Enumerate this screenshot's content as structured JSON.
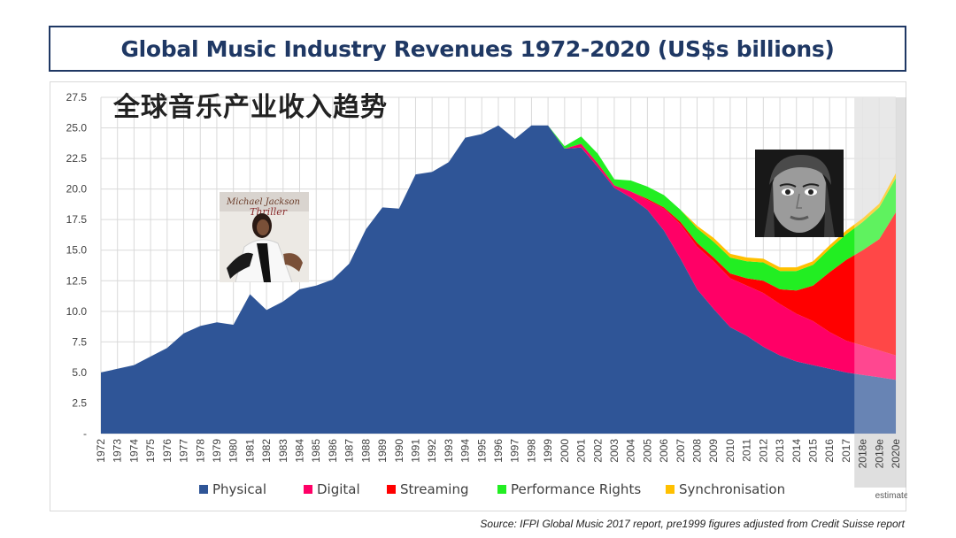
{
  "header": {
    "title": "Global Music Industry Revenues 1972-2020 (US$s billions)",
    "subtitle_cn": "全球音乐产业收入趋势"
  },
  "source_note": "Source: IFPI Global Music 2017 report, pre1999 figures adjusted from Credit Suisse report",
  "estimates_label": "estimates",
  "colors": {
    "physical": "#2f5597",
    "digital": "#ff0066",
    "streaming": "#ff0000",
    "performance": "#22ee22",
    "sync": "#ffc000",
    "grid": "#d9d9d9",
    "estimate_shade": "#bfbfbf"
  },
  "images": {
    "album_left": "Michael Jackson Thriller album cover",
    "album_right": "Adele 25 album cover"
  },
  "chart_data": {
    "type": "area",
    "stacked": true,
    "x": [
      "1972",
      "1973",
      "1974",
      "1975",
      "1976",
      "1977",
      "1978",
      "1979",
      "1980",
      "1981",
      "1982",
      "1983",
      "1984",
      "1985",
      "1986",
      "1987",
      "1988",
      "1989",
      "1990",
      "1991",
      "1992",
      "1993",
      "1994",
      "1995",
      "1996",
      "1997",
      "1998",
      "1999",
      "2000",
      "2001",
      "2002",
      "2003",
      "2004",
      "2005",
      "2006",
      "2007",
      "2008",
      "2009",
      "2010",
      "2011",
      "2012",
      "2013",
      "2014",
      "2015",
      "2016",
      "2017",
      "2018e",
      "2019e",
      "2020e"
    ],
    "estimate_start": "2018e",
    "y_ticks": [
      "-",
      "2.5",
      "5.0",
      "7.5",
      "10.0",
      "12.5",
      "15.0",
      "17.5",
      "20.0",
      "22.5",
      "25.0",
      "27.5"
    ],
    "ylim": [
      0,
      27.5
    ],
    "legend_position": "bottom",
    "grid": true,
    "series": [
      {
        "name": "Physical",
        "color_key": "physical",
        "values": [
          5.0,
          5.3,
          5.6,
          6.3,
          7.0,
          8.2,
          8.8,
          9.1,
          8.9,
          11.4,
          10.1,
          10.8,
          11.8,
          12.1,
          12.6,
          13.9,
          16.7,
          18.5,
          18.4,
          21.2,
          21.4,
          22.2,
          24.2,
          24.5,
          25.2,
          24.1,
          25.2,
          25.2,
          23.3,
          23.4,
          21.8,
          20.1,
          19.3,
          18.3,
          16.6,
          14.3,
          11.8,
          10.2,
          8.7,
          8.0,
          7.1,
          6.4,
          5.9,
          5.6,
          5.3,
          5.0,
          4.8,
          4.6,
          4.4
        ]
      },
      {
        "name": "Digital",
        "color_key": "digital",
        "values": [
          0,
          0,
          0,
          0,
          0,
          0,
          0,
          0,
          0,
          0,
          0,
          0,
          0,
          0,
          0,
          0,
          0,
          0,
          0,
          0,
          0,
          0,
          0,
          0,
          0,
          0,
          0,
          0,
          0,
          0.3,
          0.3,
          0.2,
          0.5,
          0.8,
          1.8,
          2.8,
          3.5,
          3.9,
          4.0,
          4.1,
          4.4,
          4.2,
          3.9,
          3.6,
          3.0,
          2.6,
          2.4,
          2.2,
          2.0
        ]
      },
      {
        "name": "Streaming",
        "color_key": "streaming",
        "values": [
          0,
          0,
          0,
          0,
          0,
          0,
          0,
          0,
          0,
          0,
          0,
          0,
          0,
          0,
          0,
          0,
          0,
          0,
          0,
          0,
          0,
          0,
          0,
          0,
          0,
          0,
          0,
          0,
          0,
          0,
          0,
          0,
          0,
          0.1,
          0.1,
          0.2,
          0.3,
          0.3,
          0.4,
          0.6,
          1.0,
          1.2,
          1.9,
          2.9,
          4.9,
          6.6,
          7.8,
          9.1,
          11.7
        ]
      },
      {
        "name": "Performance Rights",
        "color_key": "performance",
        "values": [
          0,
          0,
          0,
          0,
          0,
          0,
          0,
          0,
          0,
          0,
          0,
          0,
          0,
          0,
          0,
          0,
          0,
          0,
          0,
          0,
          0,
          0,
          0,
          0,
          0,
          0,
          0,
          0,
          0.2,
          0.6,
          0.8,
          0.5,
          0.9,
          1.0,
          1.0,
          1.0,
          1.2,
          1.3,
          1.3,
          1.4,
          1.5,
          1.5,
          1.6,
          1.7,
          1.9,
          2.1,
          2.3,
          2.6,
          2.8
        ]
      },
      {
        "name": "Synchronisation",
        "color_key": "sync",
        "values": [
          0,
          0,
          0,
          0,
          0,
          0,
          0,
          0,
          0,
          0,
          0,
          0,
          0,
          0,
          0,
          0,
          0,
          0,
          0,
          0,
          0,
          0,
          0,
          0,
          0,
          0,
          0,
          0,
          0,
          0,
          0,
          0,
          0,
          0,
          0,
          0,
          0.2,
          0.3,
          0.3,
          0.3,
          0.3,
          0.3,
          0.3,
          0.3,
          0.3,
          0.3,
          0.3,
          0.3,
          0.4
        ]
      }
    ]
  }
}
